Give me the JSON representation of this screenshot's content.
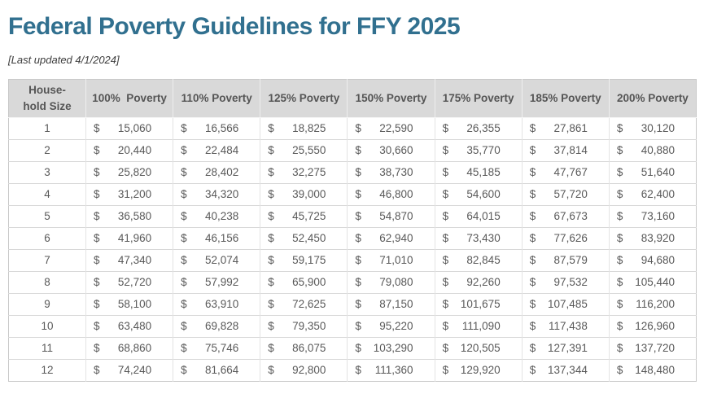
{
  "page": {
    "title": "Federal Poverty Guidelines for FFY 2025",
    "last_updated_note": "[Last updated 4/1/2024]"
  },
  "colors": {
    "title_color": "#31708f",
    "header_bg": "#d9d9d9",
    "header_text": "#555555",
    "body_text": "#595959"
  },
  "table": {
    "currency_symbol": "$",
    "columns": [
      "House-\nhold Size",
      "100%  Poverty",
      "110% Poverty",
      "125% Poverty",
      "150% Poverty",
      "175% Poverty",
      "185% Poverty",
      "200% Poverty"
    ],
    "rows": [
      {
        "household_size": "1",
        "values": [
          "15,060",
          "16,566",
          "18,825",
          "22,590",
          "26,355",
          "27,861",
          "30,120"
        ]
      },
      {
        "household_size": "2",
        "values": [
          "20,440",
          "22,484",
          "25,550",
          "30,660",
          "35,770",
          "37,814",
          "40,880"
        ]
      },
      {
        "household_size": "3",
        "values": [
          "25,820",
          "28,402",
          "32,275",
          "38,730",
          "45,185",
          "47,767",
          "51,640"
        ]
      },
      {
        "household_size": "4",
        "values": [
          "31,200",
          "34,320",
          "39,000",
          "46,800",
          "54,600",
          "57,720",
          "62,400"
        ]
      },
      {
        "household_size": "5",
        "values": [
          "36,580",
          "40,238",
          "45,725",
          "54,870",
          "64,015",
          "67,673",
          "73,160"
        ]
      },
      {
        "household_size": "6",
        "values": [
          "41,960",
          "46,156",
          "52,450",
          "62,940",
          "73,430",
          "77,626",
          "83,920"
        ]
      },
      {
        "household_size": "7",
        "values": [
          "47,340",
          "52,074",
          "59,175",
          "71,010",
          "82,845",
          "87,579",
          "94,680"
        ]
      },
      {
        "household_size": "8",
        "values": [
          "52,720",
          "57,992",
          "65,900",
          "79,080",
          "92,260",
          "97,532",
          "105,440"
        ]
      },
      {
        "household_size": "9",
        "values": [
          "58,100",
          "63,910",
          "72,625",
          "87,150",
          "101,675",
          "107,485",
          "116,200"
        ]
      },
      {
        "household_size": "10",
        "values": [
          "63,480",
          "69,828",
          "79,350",
          "95,220",
          "111,090",
          "117,438",
          "126,960"
        ]
      },
      {
        "household_size": "11",
        "values": [
          "68,860",
          "75,746",
          "86,075",
          "103,290",
          "120,505",
          "127,391",
          "137,720"
        ]
      },
      {
        "household_size": "12",
        "values": [
          "74,240",
          "81,664",
          "92,800",
          "111,360",
          "129,920",
          "137,344",
          "148,480"
        ]
      }
    ]
  }
}
